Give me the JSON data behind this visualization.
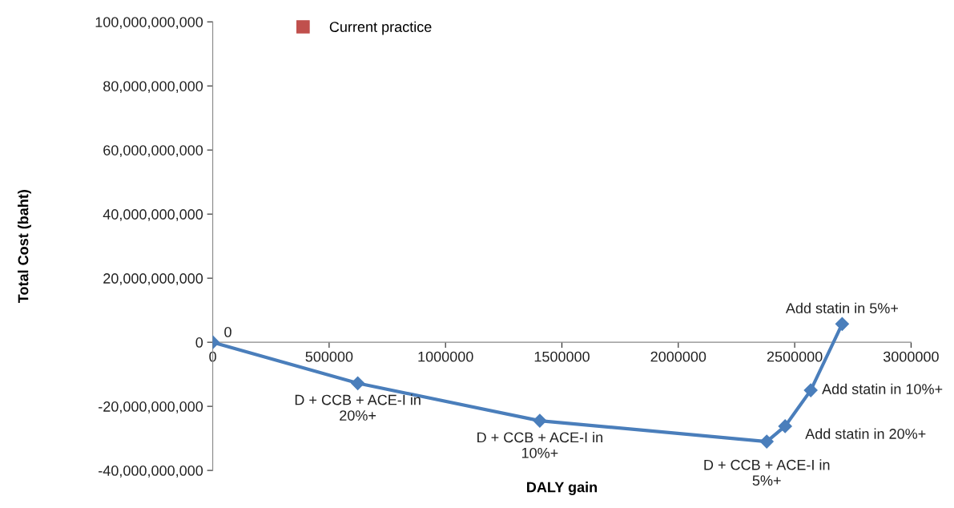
{
  "chart_data": {
    "type": "line",
    "xlabel": "DALY gain",
    "ylabel": "Total Cost (baht)",
    "xlim": [
      0,
      3000000
    ],
    "xticks": [
      0,
      500000,
      1000000,
      1500000,
      2000000,
      2500000,
      3000000
    ],
    "ylim": [
      -40000000000,
      100000000000
    ],
    "yticks": [
      {
        "value": -40000000000,
        "label": "-40,000,000,000"
      },
      {
        "value": -20000000000,
        "label": "-20,000,000,000"
      },
      0,
      {
        "value": 20000000000,
        "label": "20,000,000,000"
      },
      {
        "value": 40000000000,
        "label": "40,000,000,000"
      },
      {
        "value": 60000000000,
        "label": "60,000,000,000"
      },
      {
        "value": 80000000000,
        "label": "80,000,000,000"
      },
      {
        "value": 100000000000,
        "label": "100,000,000,000"
      }
    ],
    "grid": false,
    "legend": "top left",
    "marker": "diamond",
    "line_style": "solid",
    "series": [
      {
        "color": "#4a7ebb",
        "x": [
          0,
          623000,
          1405000,
          2380000,
          2459000,
          2569000,
          2704000
        ],
        "values": [
          0,
          -12800000000,
          -24500000000,
          -31000000000,
          -26200000000,
          -15000000000,
          5700000000
        ]
      },
      {
        "name": "Current practice",
        "type": "scatter",
        "marker": "square",
        "color": "#c0504d"
      }
    ],
    "annotations": [
      {
        "text": "0",
        "x": 0,
        "y": 0
      },
      {
        "text": "D + CCB + ACE-I in\n20%+",
        "x": 623000,
        "y": -12800000000
      },
      {
        "text": "D + CCB + ACE-I in\n10%+",
        "x": 1405000,
        "y": -24500000000
      },
      {
        "text": "D + CCB + ACE-I in\n5%+",
        "x": 2380000,
        "y": -31000000000
      },
      {
        "text": "Add statin in 20%+",
        "x": 2459000,
        "y": -26200000000
      },
      {
        "text": "Add statin in 10%+",
        "x": 2569000,
        "y": -15000000000
      },
      {
        "text": "Add statin in 5%+",
        "x": 2704000,
        "y": 5700000000
      }
    ]
  }
}
